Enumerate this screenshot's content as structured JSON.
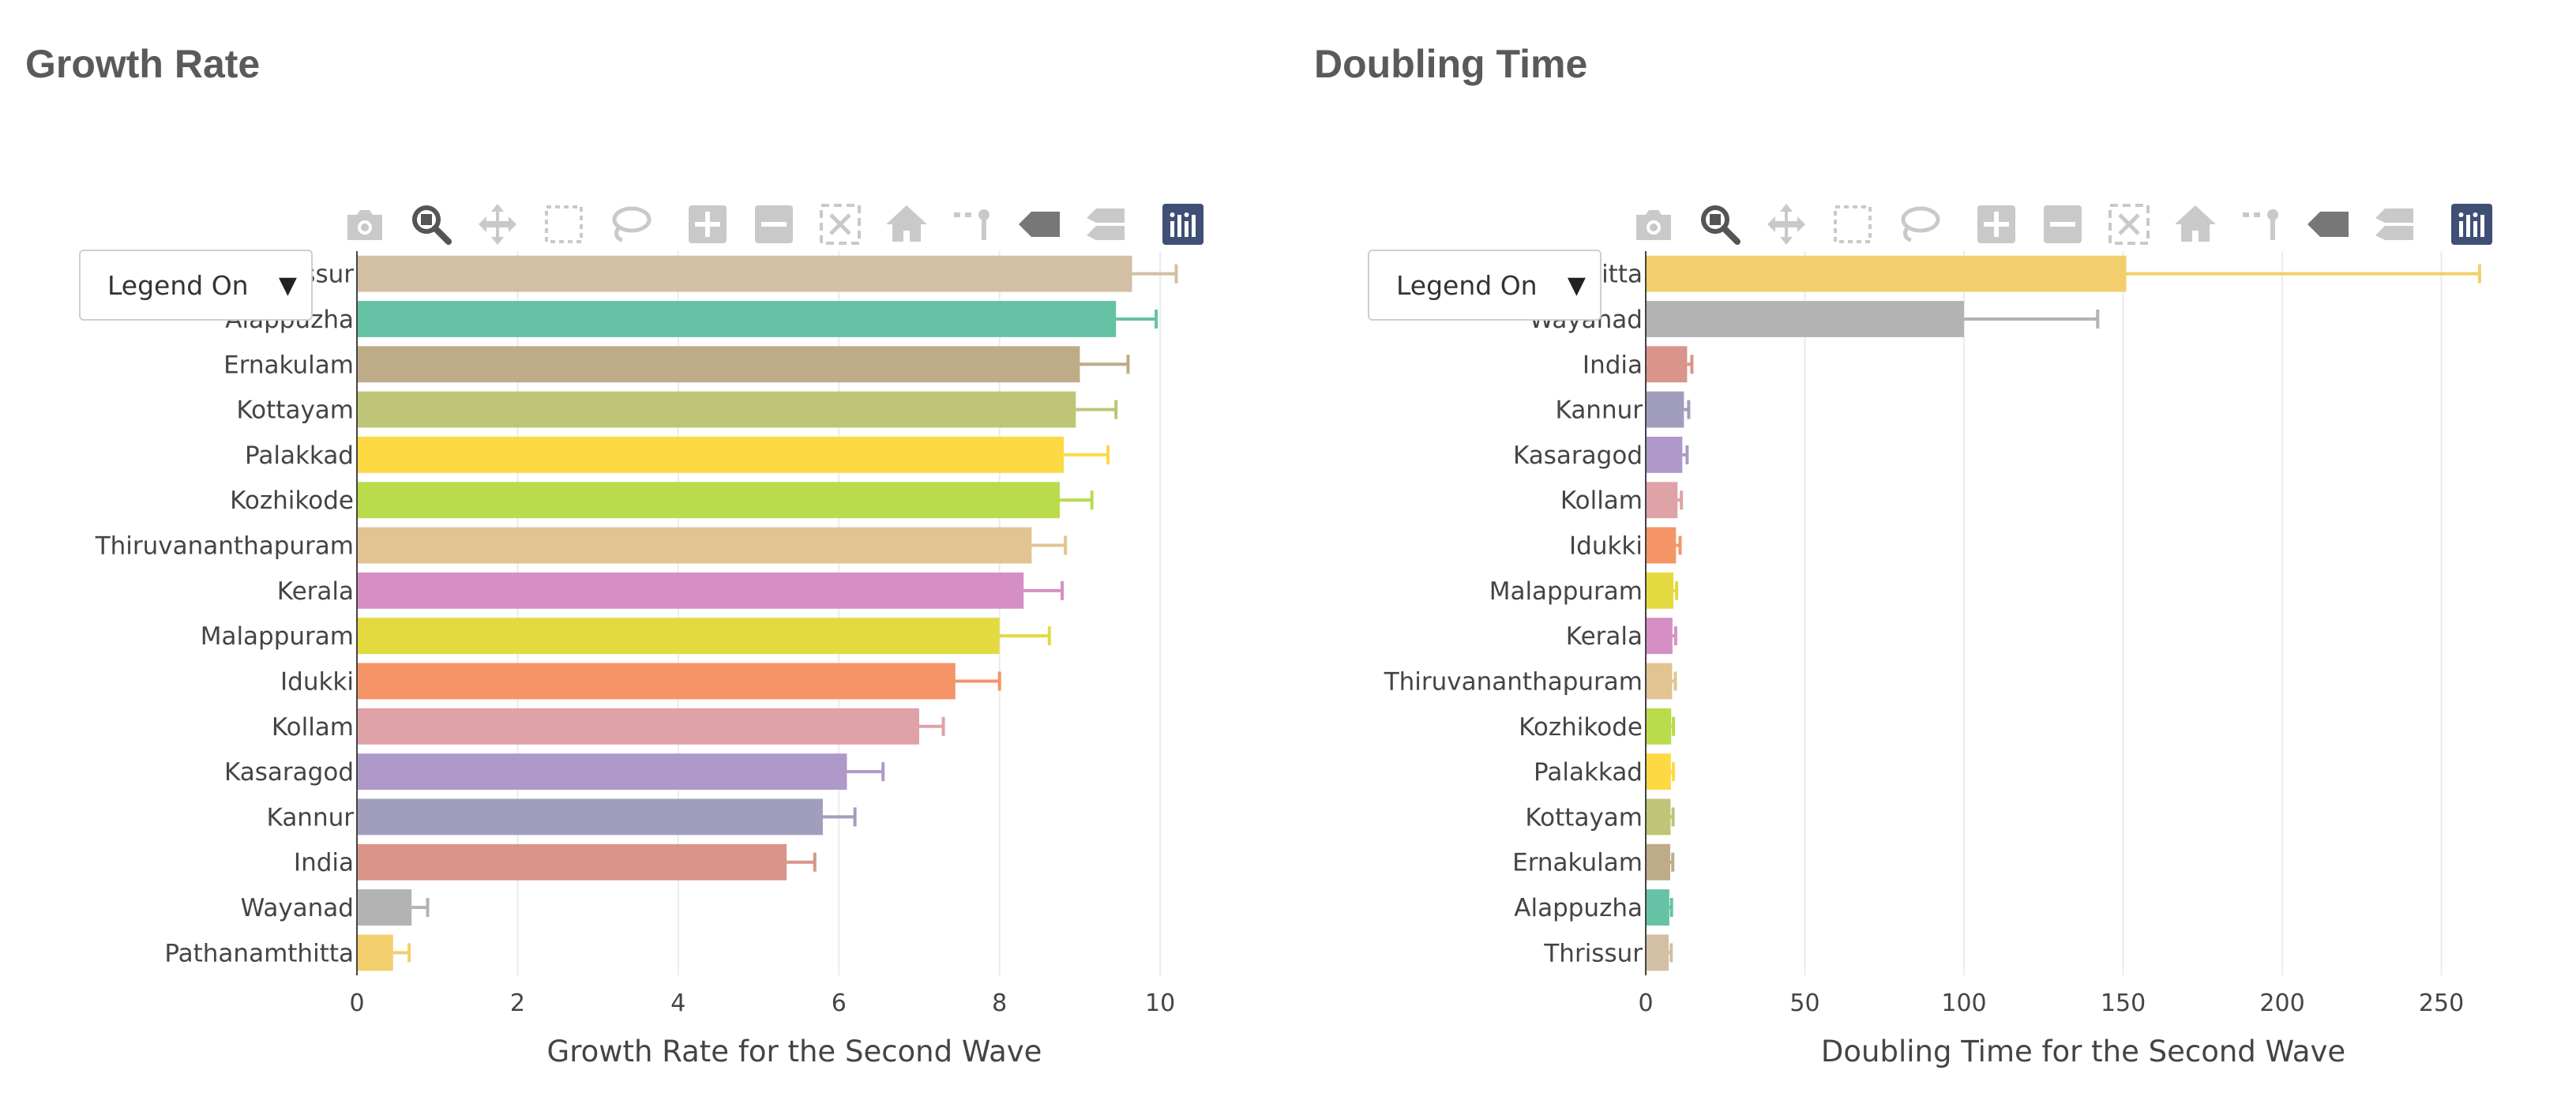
{
  "panels": [
    {
      "title": "Growth Rate",
      "legend_select": "Legend On"
    },
    {
      "title": "Doubling Time",
      "legend_select": "Legend On"
    }
  ],
  "modebar_icons": [
    "camera-icon",
    "zoom-icon",
    "pan-icon",
    "box-select-icon",
    "lasso-select-icon",
    "zoom-in-icon",
    "zoom-out-icon",
    "autoscale-icon",
    "reset-axes-icon",
    "toggle-spike-lines-icon",
    "hover-closest-icon",
    "hover-compare-icon",
    "plotly-logo-icon"
  ],
  "chart_data": [
    {
      "type": "bar",
      "orientation": "horizontal",
      "title": "Growth Rate",
      "xlabel": "Growth Rate for the Second Wave",
      "ylabel": "",
      "xlim": [
        0,
        10.5
      ],
      "xticks": [
        0,
        2,
        4,
        6,
        8,
        10
      ],
      "grid": true,
      "error_bars": true,
      "categories": [
        "Thrissur",
        "Alappuzha",
        "Ernakulam",
        "Kottayam",
        "Palakkad",
        "Kozhikode",
        "Thiruvananthapuram",
        "Kerala",
        "Malappuram",
        "Idukki",
        "Kollam",
        "Kasaragod",
        "Kannur",
        "India",
        "Wayanad",
        "Pathanamthitta"
      ],
      "values": [
        9.65,
        9.45,
        9.0,
        8.95,
        8.8,
        8.75,
        8.4,
        8.3,
        8.0,
        7.45,
        7.0,
        6.1,
        5.8,
        5.35,
        0.68,
        0.45
      ],
      "errors": [
        0.55,
        0.5,
        0.6,
        0.5,
        0.55,
        0.4,
        0.42,
        0.48,
        0.62,
        0.55,
        0.3,
        0.45,
        0.4,
        0.35,
        0.2,
        0.2
      ],
      "colors": [
        "#d3bfa3",
        "#66c2a5",
        "#beab87",
        "#bec577",
        "#fdd944",
        "#badb4b",
        "#e2c392",
        "#d58fc4",
        "#e2da3e",
        "#f59466",
        "#dea2a7",
        "#ae99c8",
        "#a19ebd",
        "#d9958a",
        "#b3b3b3",
        "#f2cf6c"
      ]
    },
    {
      "type": "bar",
      "orientation": "horizontal",
      "title": "Doubling Time",
      "xlabel": "Doubling Time for the Second Wave",
      "ylabel": "",
      "xlim": [
        0,
        265
      ],
      "xticks": [
        0,
        50,
        100,
        150,
        200,
        250
      ],
      "grid": true,
      "error_bars": true,
      "categories": [
        "Pathanamthitta",
        "Wayanad",
        "India",
        "Kannur",
        "Kasaragod",
        "Kollam",
        "Idukki",
        "Malappuram",
        "Kerala",
        "Thiruvananthapuram",
        "Kozhikode",
        "Palakkad",
        "Kottayam",
        "Ernakulam",
        "Alappuzha",
        "Thrissur"
      ],
      "values": [
        151,
        100,
        13,
        12,
        11.5,
        10,
        9.5,
        8.7,
        8.4,
        8.3,
        8.0,
        7.9,
        7.8,
        7.7,
        7.4,
        7.2
      ],
      "errors": [
        111,
        42,
        1.5,
        1.5,
        1.5,
        1.2,
        1.3,
        1.0,
        1.0,
        1.0,
        0.7,
        0.8,
        0.8,
        0.8,
        0.7,
        0.8
      ],
      "colors": [
        "#f2cf6c",
        "#b3b3b3",
        "#d9958a",
        "#a19ebd",
        "#ae99c8",
        "#dea2a7",
        "#f59466",
        "#e2da3e",
        "#d58fc4",
        "#e2c392",
        "#badb4b",
        "#fdd944",
        "#bec577",
        "#beab87",
        "#66c2a5",
        "#d3bfa3"
      ]
    }
  ]
}
